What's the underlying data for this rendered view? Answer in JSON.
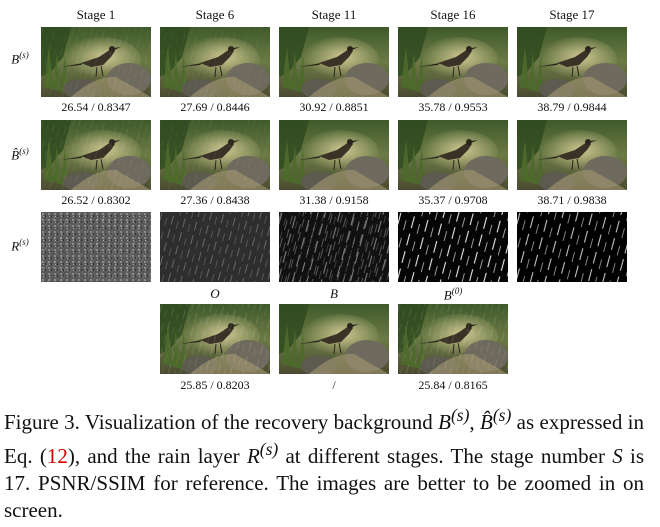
{
  "stages": [
    "Stage 1",
    "Stage 6",
    "Stage 11",
    "Stage 16",
    "Stage 17"
  ],
  "row_labels": {
    "b": "B",
    "b_hat": "B̂",
    "r": "R",
    "sup": "(s)"
  },
  "metrics": {
    "b": [
      "26.54 / 0.8347",
      "27.69 / 0.8446",
      "30.92 / 0.8851",
      "35.78 / 0.9553",
      "38.79 / 0.9844"
    ],
    "b_hat": [
      "26.52 / 0.8302",
      "27.36 / 0.8438",
      "31.38 / 0.9158",
      "35.37 / 0.9708",
      "38.71 / 0.9838"
    ]
  },
  "bottom": {
    "labels": [
      "O",
      "B",
      "B"
    ],
    "label3_sup": "(0)",
    "metrics": [
      "25.85 / 0.8203",
      "/",
      "25.84 / 0.8165"
    ]
  },
  "caption": {
    "line1_a": "Figure 3. Visualization of the recovery background ",
    "line1_b": ", ",
    "line1_c": " as",
    "line2_a": "expressed in Eq. (",
    "eq_ref": "12",
    "line2_b": "), and the rain layer ",
    "line2_c": " at different stages.",
    "line3": "The stage number ",
    "s_var": "S",
    "line3_b": " is 17. PSNR/SSIM for reference. The images",
    "line4": "are better to be zoomed in on screen."
  }
}
